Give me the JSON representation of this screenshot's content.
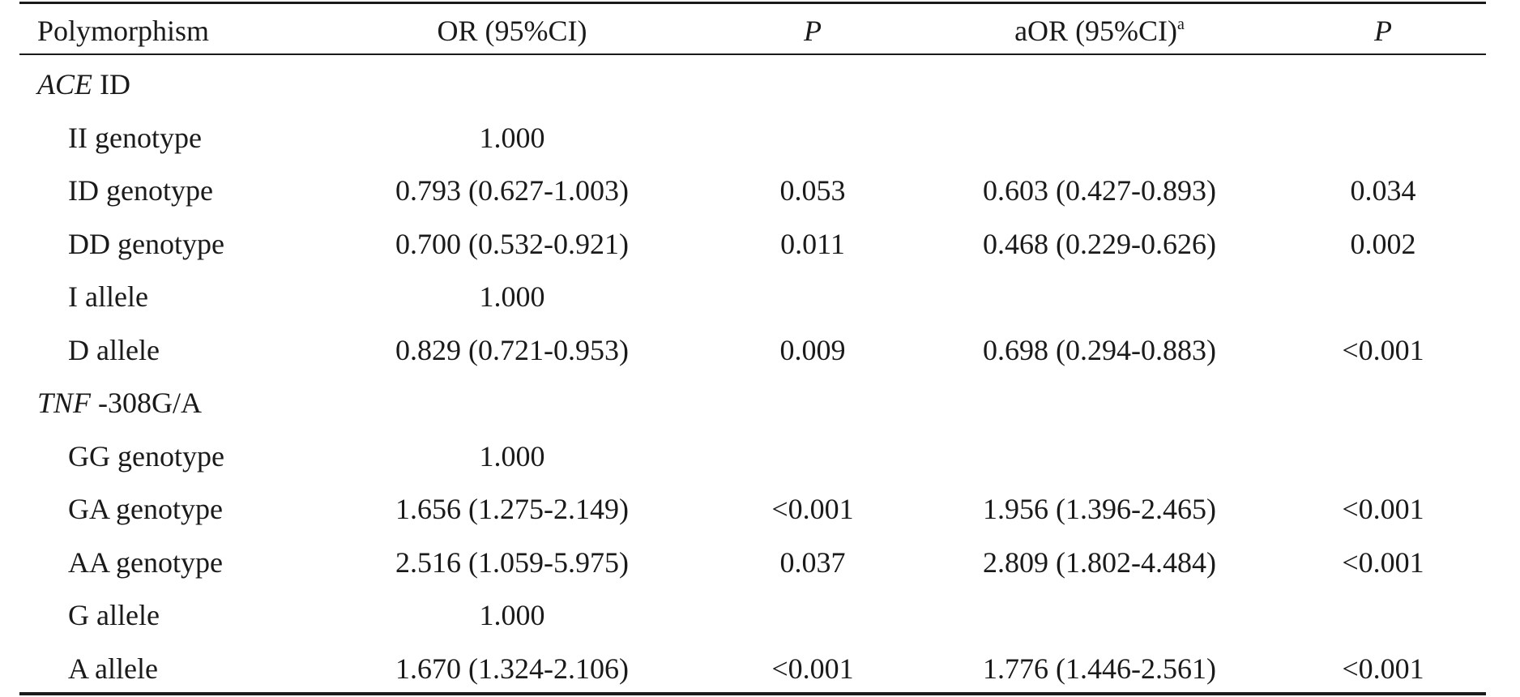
{
  "table": {
    "headers": {
      "polymorphism": "Polymorphism",
      "or": "OR (95%CI)",
      "p1": "P",
      "aor": "aOR (95%CI)",
      "aor_sup": "a",
      "p2": "P"
    },
    "groups": [
      {
        "gene": "ACE",
        "variant": " ID",
        "rows": [
          {
            "label": "II genotype",
            "or": "1.000",
            "p": "",
            "aor": "",
            "p2": ""
          },
          {
            "label": "ID genotype",
            "or": "0.793 (0.627-1.003)",
            "p": "0.053",
            "aor": "0.603 (0.427-0.893)",
            "p2": "0.034"
          },
          {
            "label": "DD genotype",
            "or": "0.700 (0.532-0.921)",
            "p": "0.011",
            "aor": "0.468 (0.229-0.626)",
            "p2": "0.002"
          },
          {
            "label": "I allele",
            "or": "1.000",
            "p": "",
            "aor": "",
            "p2": ""
          },
          {
            "label": "D allele",
            "or": "0.829 (0.721-0.953)",
            "p": "0.009",
            "aor": "0.698 (0.294-0.883)",
            "p2": "<0.001"
          }
        ]
      },
      {
        "gene": "TNF",
        "variant": " -308G/A",
        "rows": [
          {
            "label": "GG genotype",
            "or": "1.000",
            "p": "",
            "aor": "",
            "p2": ""
          },
          {
            "label": "GA genotype",
            "or": "1.656 (1.275-2.149)",
            "p": "<0.001",
            "aor": "1.956 (1.396-2.465)",
            "p2": "<0.001"
          },
          {
            "label": "AA genotype",
            "or": "2.516 (1.059-5.975)",
            "p": "0.037",
            "aor": "2.809 (1.802-4.484)",
            "p2": "<0.001"
          },
          {
            "label": "G allele",
            "or": "1.000",
            "p": "",
            "aor": "",
            "p2": ""
          },
          {
            "label": "A allele",
            "or": "1.670 (1.324-2.106)",
            "p": "<0.001",
            "aor": "1.776 (1.446-2.561)",
            "p2": "<0.001"
          }
        ]
      }
    ]
  }
}
